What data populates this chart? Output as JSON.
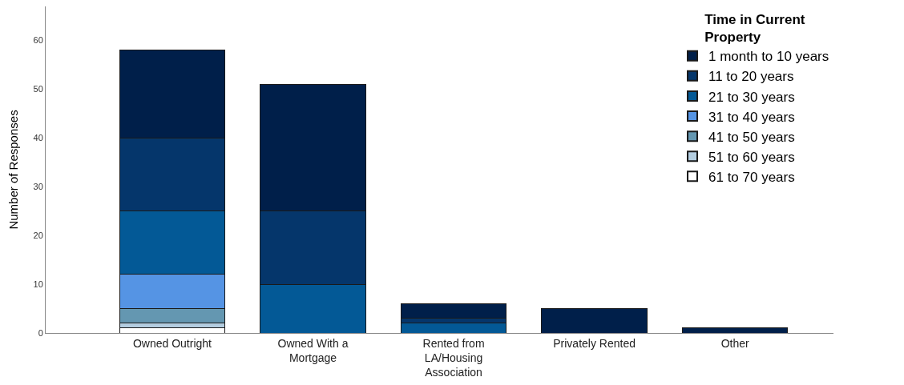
{
  "chart_data": {
    "type": "bar",
    "stacked": true,
    "ylabel": "Number of Responses",
    "legend_title": "Time in Current\nProperty",
    "legend": "top right",
    "categories": [
      "Owned Outright",
      "Owned With a\nMortgage",
      "Rented from\nLA/Housing\nAssociation",
      "Privately Rented",
      "Other"
    ],
    "ylim": [
      0,
      67
    ],
    "yticks": [
      0,
      10,
      20,
      30,
      40,
      50,
      60
    ],
    "series": [
      {
        "name": "61 to 70 years",
        "color": "#ffffff",
        "values": [
          1,
          null,
          null,
          null,
          null
        ]
      },
      {
        "name": "51 to 60 years",
        "color": "#b3cde0",
        "values": [
          1,
          null,
          null,
          null,
          null
        ]
      },
      {
        "name": "41 to 50 years",
        "color": "#6497b1",
        "values": [
          3,
          null,
          null,
          null,
          null
        ]
      },
      {
        "name": "31 to 40 years",
        "color": "#5594e4",
        "values": [
          7,
          null,
          null,
          null,
          null
        ]
      },
      {
        "name": "21 to 30 years",
        "color": "#035996",
        "values": [
          13,
          10,
          2,
          null,
          null
        ]
      },
      {
        "name": "11 to 20 years",
        "color": "#05366b",
        "values": [
          15,
          15,
          1,
          null,
          null
        ]
      },
      {
        "name": "1 month to 10 years",
        "color": "#001f4a",
        "values": [
          18,
          26,
          3,
          5,
          1
        ]
      }
    ]
  }
}
